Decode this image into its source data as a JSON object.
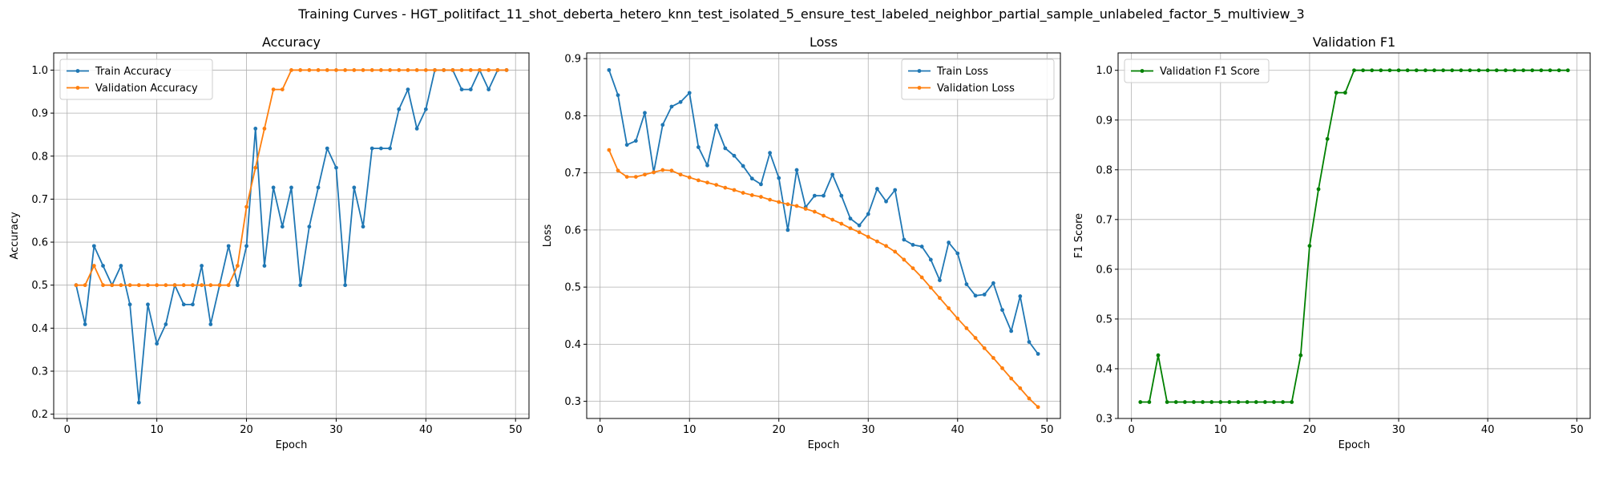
{
  "figure": {
    "title": "Training Curves - HGT_politifact_11_shot_deberta_hetero_knn_test_isolated_5_ensure_test_labeled_neighbor_partial_sample_unlabeled_factor_5_multiview_3"
  },
  "chart_data": [
    {
      "type": "line",
      "title": "Accuracy",
      "xlabel": "Epoch",
      "ylabel": "Accuracy",
      "xlim": [
        -1.5,
        51.5
      ],
      "ylim": [
        0.19,
        1.04
      ],
      "xticks": [
        0,
        10,
        20,
        30,
        40,
        50
      ],
      "yticks": [
        0.2,
        0.3,
        0.4,
        0.5,
        0.6,
        0.7,
        0.8,
        0.9,
        1.0
      ],
      "grid": true,
      "legend": "upper left",
      "x": [
        1,
        2,
        3,
        4,
        5,
        6,
        7,
        8,
        9,
        10,
        11,
        12,
        13,
        14,
        15,
        16,
        17,
        18,
        19,
        20,
        21,
        22,
        23,
        24,
        25,
        26,
        27,
        28,
        29,
        30,
        31,
        32,
        33,
        34,
        35,
        36,
        37,
        38,
        39,
        40,
        41,
        42,
        43,
        44,
        45,
        46,
        47,
        48,
        49
      ],
      "series": [
        {
          "name": "Train Accuracy",
          "color": "#1f77b4",
          "values": [
            0.5,
            0.409,
            0.591,
            0.545,
            0.5,
            0.545,
            0.455,
            0.227,
            0.455,
            0.364,
            0.409,
            0.5,
            0.455,
            0.455,
            0.545,
            0.409,
            0.5,
            0.591,
            0.5,
            0.591,
            0.864,
            0.545,
            0.727,
            0.636,
            0.727,
            0.5,
            0.636,
            0.727,
            0.818,
            0.773,
            0.5,
            0.727,
            0.636,
            0.818,
            0.818,
            0.818,
            0.909,
            0.955,
            0.864,
            0.909,
            1.0,
            1.0,
            1.0,
            0.955,
            0.955,
            1.0,
            0.955,
            1.0,
            1.0
          ]
        },
        {
          "name": "Validation Accuracy",
          "color": "#ff7f0e",
          "values": [
            0.5,
            0.5,
            0.545,
            0.5,
            0.5,
            0.5,
            0.5,
            0.5,
            0.5,
            0.5,
            0.5,
            0.5,
            0.5,
            0.5,
            0.5,
            0.5,
            0.5,
            0.5,
            0.545,
            0.682,
            0.773,
            0.864,
            0.955,
            0.955,
            1.0,
            1.0,
            1.0,
            1.0,
            1.0,
            1.0,
            1.0,
            1.0,
            1.0,
            1.0,
            1.0,
            1.0,
            1.0,
            1.0,
            1.0,
            1.0,
            1.0,
            1.0,
            1.0,
            1.0,
            1.0,
            1.0,
            1.0,
            1.0,
            1.0
          ]
        }
      ]
    },
    {
      "type": "line",
      "title": "Loss",
      "xlabel": "Epoch",
      "ylabel": "Loss",
      "xlim": [
        -1.5,
        51.5
      ],
      "ylim": [
        0.27,
        0.91
      ],
      "xticks": [
        0,
        10,
        20,
        30,
        40,
        50
      ],
      "yticks": [
        0.3,
        0.4,
        0.5,
        0.6,
        0.7,
        0.8,
        0.9
      ],
      "grid": true,
      "legend": "upper right",
      "x": [
        1,
        2,
        3,
        4,
        5,
        6,
        7,
        8,
        9,
        10,
        11,
        12,
        13,
        14,
        15,
        16,
        17,
        18,
        19,
        20,
        21,
        22,
        23,
        24,
        25,
        26,
        27,
        28,
        29,
        30,
        31,
        32,
        33,
        34,
        35,
        36,
        37,
        38,
        39,
        40,
        41,
        42,
        43,
        44,
        45,
        46,
        47,
        48,
        49
      ],
      "series": [
        {
          "name": "Train Loss",
          "color": "#1f77b4",
          "values": [
            0.88,
            0.836,
            0.749,
            0.756,
            0.805,
            0.701,
            0.784,
            0.816,
            0.824,
            0.84,
            0.745,
            0.713,
            0.783,
            0.743,
            0.73,
            0.712,
            0.69,
            0.68,
            0.735,
            0.691,
            0.6,
            0.705,
            0.64,
            0.66,
            0.66,
            0.697,
            0.66,
            0.62,
            0.608,
            0.628,
            0.672,
            0.65,
            0.67,
            0.583,
            0.574,
            0.571,
            0.548,
            0.512,
            0.578,
            0.559,
            0.505,
            0.485,
            0.487,
            0.507,
            0.46,
            0.423,
            0.484,
            0.404,
            0.383
          ]
        },
        {
          "name": "Validation Loss",
          "color": "#ff7f0e",
          "values": [
            0.74,
            0.704,
            0.693,
            0.693,
            0.697,
            0.701,
            0.705,
            0.704,
            0.697,
            0.692,
            0.687,
            0.683,
            0.679,
            0.674,
            0.67,
            0.665,
            0.661,
            0.658,
            0.653,
            0.649,
            0.645,
            0.642,
            0.637,
            0.632,
            0.625,
            0.618,
            0.611,
            0.603,
            0.596,
            0.588,
            0.58,
            0.572,
            0.562,
            0.548,
            0.533,
            0.517,
            0.499,
            0.481,
            0.463,
            0.445,
            0.428,
            0.411,
            0.393,
            0.376,
            0.358,
            0.34,
            0.323,
            0.305,
            0.29
          ]
        }
      ]
    },
    {
      "type": "line",
      "title": "Validation F1",
      "xlabel": "Epoch",
      "ylabel": "F1 Score",
      "xlim": [
        -1.5,
        51.5
      ],
      "ylim": [
        0.3,
        1.035
      ],
      "xticks": [
        0,
        10,
        20,
        30,
        40,
        50
      ],
      "yticks": [
        0.3,
        0.4,
        0.5,
        0.6,
        0.7,
        0.8,
        0.9,
        1.0
      ],
      "grid": true,
      "legend": "upper left",
      "x": [
        1,
        2,
        3,
        4,
        5,
        6,
        7,
        8,
        9,
        10,
        11,
        12,
        13,
        14,
        15,
        16,
        17,
        18,
        19,
        20,
        21,
        22,
        23,
        24,
        25,
        26,
        27,
        28,
        29,
        30,
        31,
        32,
        33,
        34,
        35,
        36,
        37,
        38,
        39,
        40,
        41,
        42,
        43,
        44,
        45,
        46,
        47,
        48,
        49
      ],
      "series": [
        {
          "name": "Validation F1 Score",
          "color": "#008000",
          "values": [
            0.333,
            0.333,
            0.427,
            0.333,
            0.333,
            0.333,
            0.333,
            0.333,
            0.333,
            0.333,
            0.333,
            0.333,
            0.333,
            0.333,
            0.333,
            0.333,
            0.333,
            0.333,
            0.427,
            0.647,
            0.761,
            0.862,
            0.955,
            0.955,
            1.0,
            1.0,
            1.0,
            1.0,
            1.0,
            1.0,
            1.0,
            1.0,
            1.0,
            1.0,
            1.0,
            1.0,
            1.0,
            1.0,
            1.0,
            1.0,
            1.0,
            1.0,
            1.0,
            1.0,
            1.0,
            1.0,
            1.0,
            1.0,
            1.0
          ]
        }
      ]
    }
  ]
}
